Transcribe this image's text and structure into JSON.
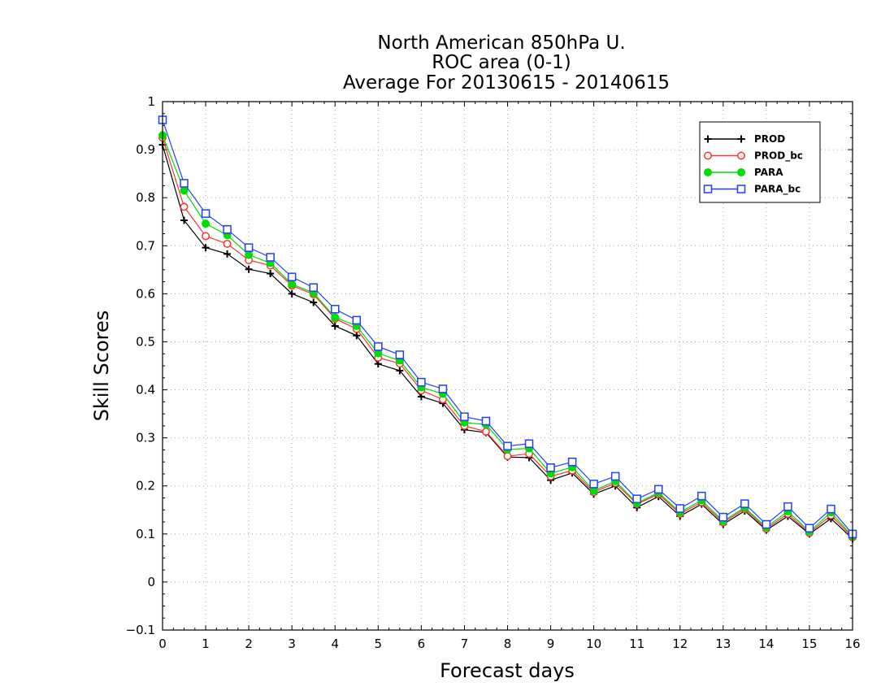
{
  "chart_data": {
    "type": "line",
    "title_lines": [
      "North American 850hPa U.",
      "ROC area (0-1)",
      "Average For 20130615 - 20140615"
    ],
    "xlabel": "Forecast days",
    "ylabel": "Skill Scores",
    "xlim": [
      0,
      16
    ],
    "ylim": [
      -0.1,
      1
    ],
    "xticks": [
      0,
      1,
      2,
      3,
      4,
      5,
      6,
      7,
      8,
      9,
      10,
      11,
      12,
      13,
      14,
      15,
      16
    ],
    "yticks": [
      -0.1,
      0,
      0.1,
      0.2,
      0.3,
      0.4,
      0.5,
      0.6,
      0.7,
      0.8,
      0.9,
      1
    ],
    "ytick_labels": [
      "−0.1",
      "0",
      "0.1",
      "0.2",
      "0.3",
      "0.4",
      "0.5",
      "0.6",
      "0.7",
      "0.8",
      "0.9",
      "1"
    ],
    "grid": true,
    "legend_position": "top-right",
    "x": [
      0,
      0.5,
      1,
      1.5,
      2,
      2.5,
      3,
      3.5,
      4,
      4.5,
      5,
      5.5,
      6,
      6.5,
      7,
      7.5,
      8,
      8.5,
      9,
      9.5,
      10,
      10.5,
      11,
      11.5,
      12,
      12.5,
      13,
      13.5,
      14,
      14.5,
      15,
      15.5,
      16
    ],
    "series": [
      {
        "name": "PROD",
        "color": "#000000",
        "marker": "plus",
        "values": [
          0.91,
          0.753,
          0.696,
          0.683,
          0.651,
          0.642,
          0.6,
          0.582,
          0.533,
          0.513,
          0.454,
          0.44,
          0.386,
          0.372,
          0.317,
          0.311,
          0.26,
          0.259,
          0.212,
          0.227,
          0.183,
          0.2,
          0.155,
          0.178,
          0.137,
          0.162,
          0.12,
          0.148,
          0.108,
          0.137,
          0.1,
          0.132,
          0.09
        ]
      },
      {
        "name": "PROD_bc",
        "color": "#ff3030",
        "marker": "open-circle",
        "values": [
          0.925,
          0.781,
          0.72,
          0.704,
          0.67,
          0.659,
          0.617,
          0.599,
          0.548,
          0.527,
          0.467,
          0.455,
          0.399,
          0.38,
          0.325,
          0.313,
          0.262,
          0.267,
          0.22,
          0.232,
          0.187,
          0.206,
          0.162,
          0.183,
          0.142,
          0.166,
          0.124,
          0.152,
          0.111,
          0.142,
          0.102,
          0.139,
          0.093
        ]
      },
      {
        "name": "PARA",
        "color": "#00dd00",
        "marker": "filled-circle",
        "values": [
          0.93,
          0.815,
          0.746,
          0.722,
          0.681,
          0.664,
          0.62,
          0.602,
          0.551,
          0.533,
          0.476,
          0.461,
          0.405,
          0.392,
          0.332,
          0.328,
          0.276,
          0.278,
          0.226,
          0.239,
          0.19,
          0.21,
          0.164,
          0.186,
          0.145,
          0.17,
          0.127,
          0.155,
          0.114,
          0.147,
          0.105,
          0.145,
          0.095
        ]
      },
      {
        "name": "PARA_bc",
        "color": "#1f3fff",
        "marker": "open-square",
        "values": [
          0.962,
          0.83,
          0.767,
          0.734,
          0.696,
          0.676,
          0.635,
          0.613,
          0.568,
          0.545,
          0.49,
          0.473,
          0.416,
          0.402,
          0.344,
          0.335,
          0.283,
          0.288,
          0.238,
          0.25,
          0.204,
          0.22,
          0.173,
          0.193,
          0.153,
          0.179,
          0.135,
          0.163,
          0.12,
          0.157,
          0.112,
          0.152,
          0.1
        ]
      }
    ]
  }
}
